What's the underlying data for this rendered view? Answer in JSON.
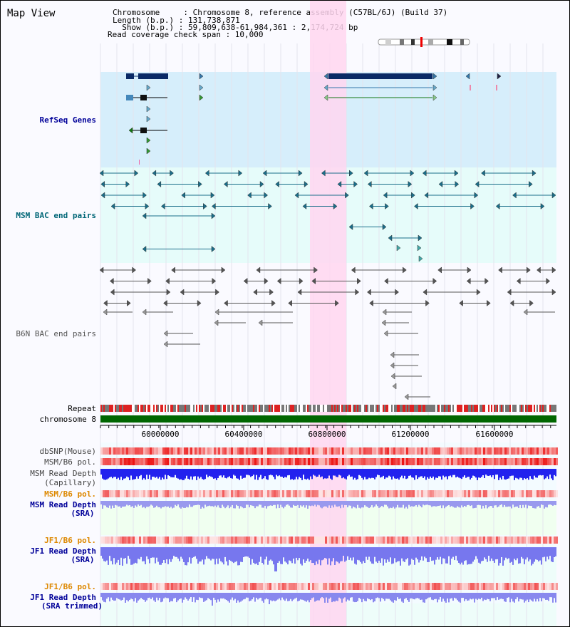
{
  "title": "Map View",
  "header": {
    "line1": "Chromosome     : Chromosome 8, reference assembly (C57BL/6J) (Build 37)",
    "line2": "Length (b.p.) : 131,738,871",
    "line3": "  Show (b.p.) : 59,809,638-61,984,361 : 2,174,724 bp",
    "line4": "Read coverage check span : 10,000"
  },
  "tracks": {
    "refseq": "RefSeq Genes",
    "msm_bac": "MSM BAC end pairs",
    "b6n_bac": "B6N BAC end pairs",
    "repeat": "Repeat",
    "chromosome": "chromosome 8",
    "dbsnp": "dbSNP(Mouse)",
    "msm_b6_pol_1": "MSM/B6 pol.",
    "msm_read_depth_cap_1": "MSM Read Depth",
    "msm_read_depth_cap_2": "(Capillary)",
    "msm_b6_pol_2": "MSM/B6 pol.",
    "msm_read_depth_sra_1": "MSM Read Depth",
    "msm_read_depth_sra_2": "(SRA)",
    "jf1_b6_pol_1": "JF1/B6 pol.",
    "jf1_read_depth_sra_1": "JF1 Read Depth",
    "jf1_read_depth_sra_2": "(SRA)",
    "jf1_b6_pol_2": "JF1/B6 pol.",
    "jf1_read_depth_trim_1": "JF1 Read Depth",
    "jf1_read_depth_trim_2": "(SRA trimmed)"
  },
  "axis": {
    "ticks": [
      "60000000",
      "60400000",
      "60800000",
      "61200000",
      "61600000"
    ]
  },
  "colors": {
    "refseq_bg": "#d6eefb",
    "msm_bg": "#e6fcfa",
    "highlight": "#ffd6f0",
    "gene_dark": "#0a2a66",
    "msm_line": "#1a6e8a",
    "b6n_line": "#555555",
    "chrom_green": "#006600",
    "label_navy": "#000099",
    "label_teal": "#006677",
    "label_orange": "#dd8800",
    "depth_blue": "#3333ee"
  }
}
